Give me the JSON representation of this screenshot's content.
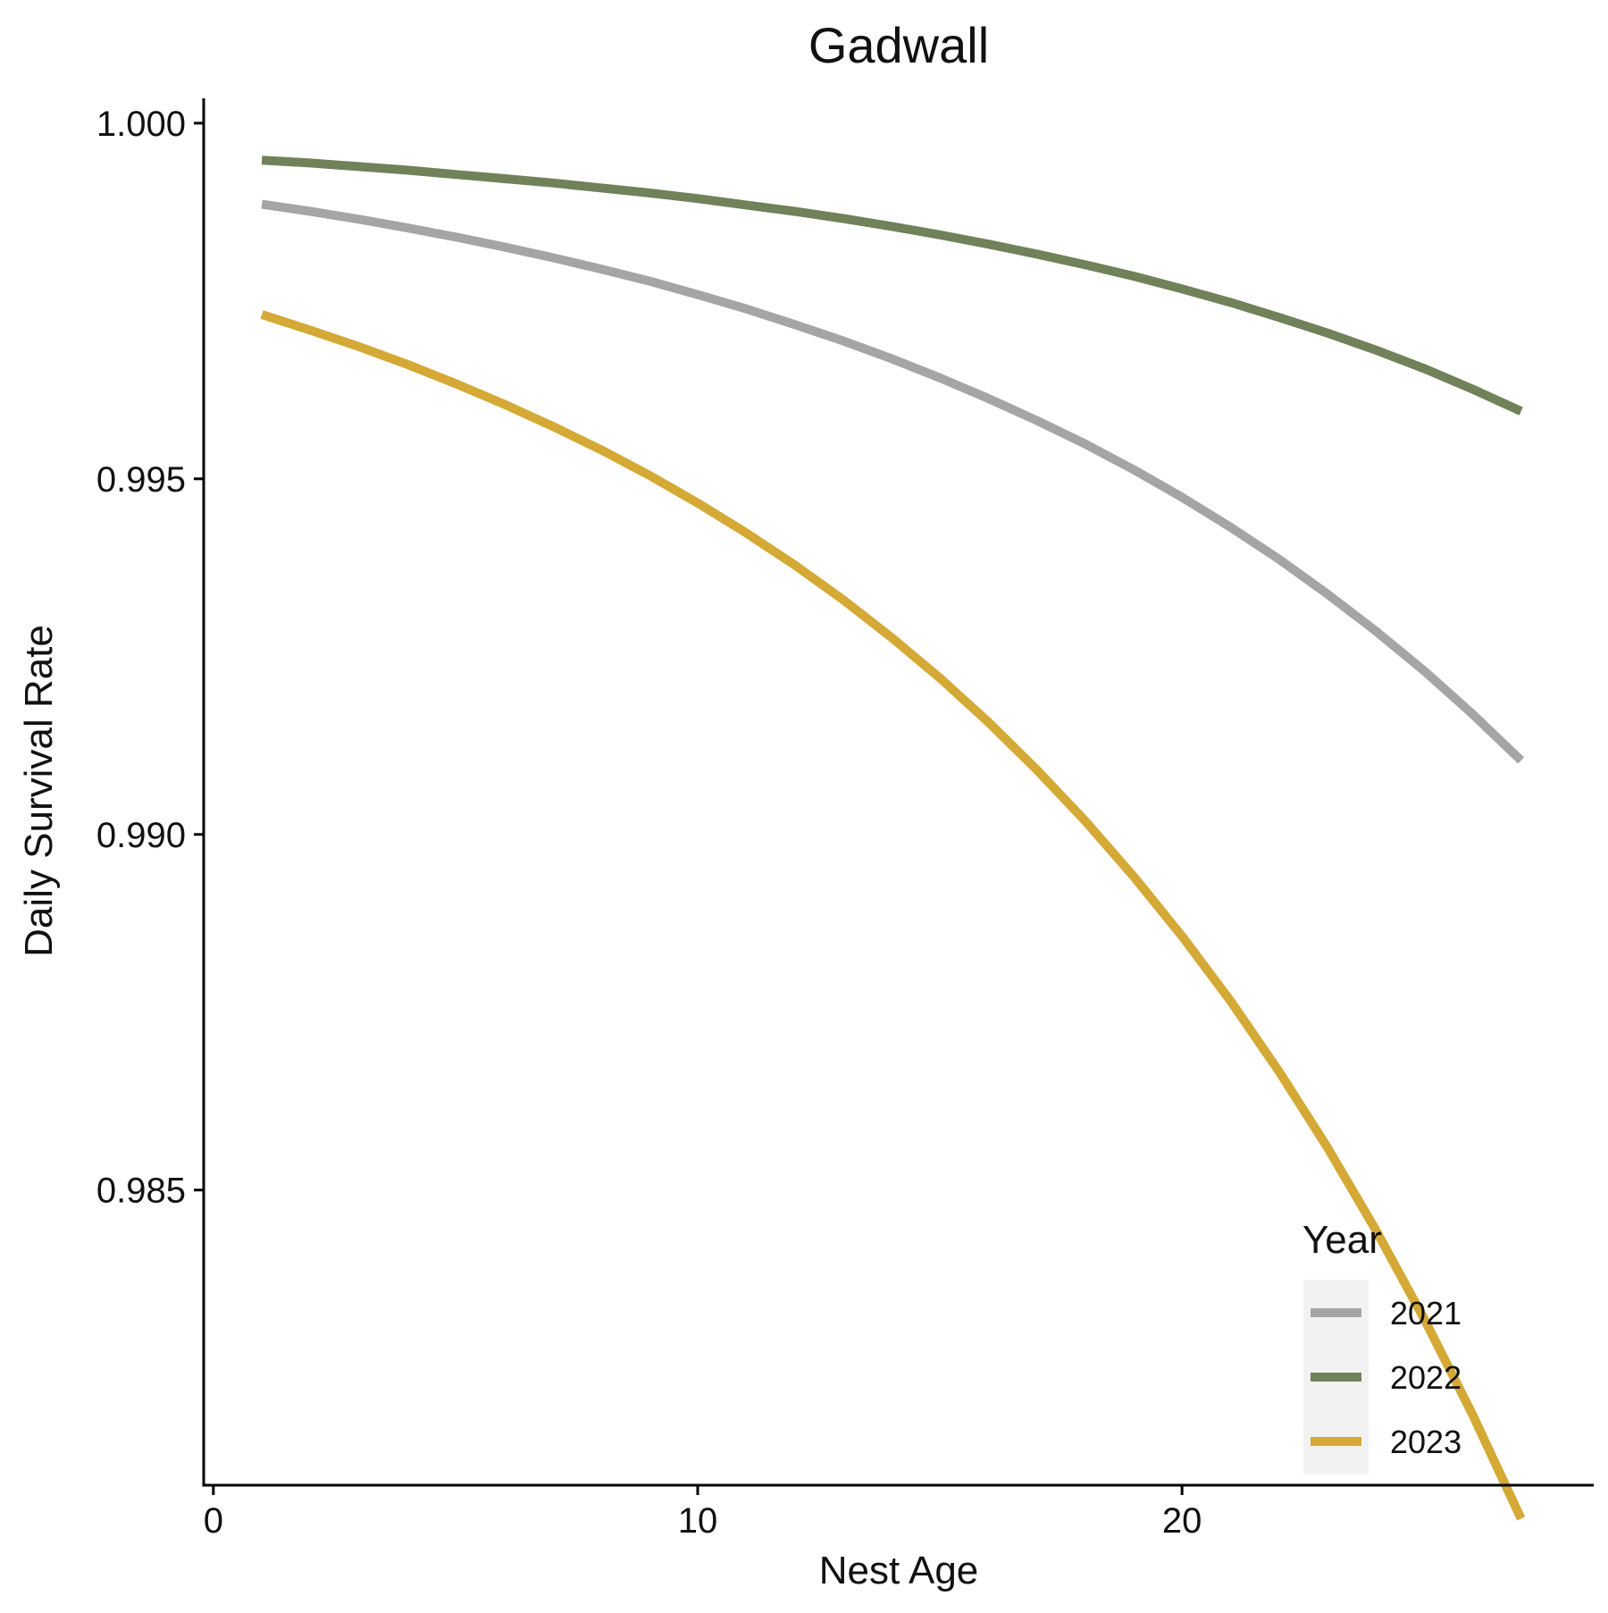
{
  "chart_data": {
    "type": "line",
    "title": "Gadwall",
    "xlabel": "Nest Age",
    "ylabel": "Daily Survival Rate",
    "xlim": [
      -0.2,
      28.5
    ],
    "ylim": [
      0.98085,
      1.00035
    ],
    "x_ticks": [
      0,
      10,
      20
    ],
    "x_tick_labels": [
      "0",
      "10",
      "20"
    ],
    "y_ticks": [
      0.985,
      0.99,
      0.995,
      1.0
    ],
    "y_tick_labels": [
      "0.985",
      "0.990",
      "0.995",
      "1.000"
    ],
    "grid": false,
    "legend": {
      "title": "Year",
      "position": "bottom-right"
    },
    "series": [
      {
        "name": "2021",
        "color": "#a5a6a4",
        "x": [
          1,
          2,
          3,
          4,
          5,
          6,
          7,
          8,
          9,
          10,
          11,
          12,
          13,
          14,
          15,
          16,
          17,
          18,
          19,
          20,
          21,
          22,
          23,
          24,
          25,
          26,
          27
        ],
        "values": [
          0.99886,
          0.99876,
          0.99865,
          0.99853,
          0.9984,
          0.99826,
          0.99811,
          0.99795,
          0.99778,
          0.99759,
          0.99739,
          0.99717,
          0.99694,
          0.99669,
          0.99642,
          0.99613,
          0.99582,
          0.99549,
          0.99513,
          0.99474,
          0.99432,
          0.99387,
          0.99338,
          0.99286,
          0.9923,
          0.99169,
          0.99104
        ]
      },
      {
        "name": "2022",
        "color": "#718159",
        "x": [
          1,
          2,
          3,
          4,
          5,
          6,
          7,
          8,
          9,
          10,
          11,
          12,
          13,
          14,
          15,
          16,
          17,
          18,
          19,
          20,
          21,
          22,
          23,
          24,
          25,
          26,
          27
        ],
        "values": [
          0.99948,
          0.99944,
          0.99939,
          0.99934,
          0.99928,
          0.99922,
          0.99916,
          0.99909,
          0.99902,
          0.99894,
          0.99885,
          0.99876,
          0.99866,
          0.99855,
          0.99843,
          0.9983,
          0.99816,
          0.99801,
          0.99785,
          0.99767,
          0.99748,
          0.99727,
          0.99705,
          0.99681,
          0.99655,
          0.99626,
          0.99595
        ]
      },
      {
        "name": "2023",
        "color": "#d4a935",
        "x": [
          1,
          2,
          3,
          4,
          5,
          6,
          7,
          8,
          9,
          10,
          11,
          12,
          13,
          14,
          15,
          16,
          17,
          18,
          19,
          20,
          21,
          22,
          23,
          24,
          25,
          26,
          27
        ],
        "values": [
          0.99731,
          0.99709,
          0.99686,
          0.99661,
          0.99634,
          0.99605,
          0.99574,
          0.99541,
          0.99505,
          0.99466,
          0.99424,
          0.99379,
          0.9933,
          0.99277,
          0.9922,
          0.99158,
          0.99091,
          0.99019,
          0.98941,
          0.98857,
          0.98766,
          0.98667,
          0.9856,
          0.98444,
          0.98319,
          0.98184,
          0.98038
        ]
      }
    ]
  }
}
